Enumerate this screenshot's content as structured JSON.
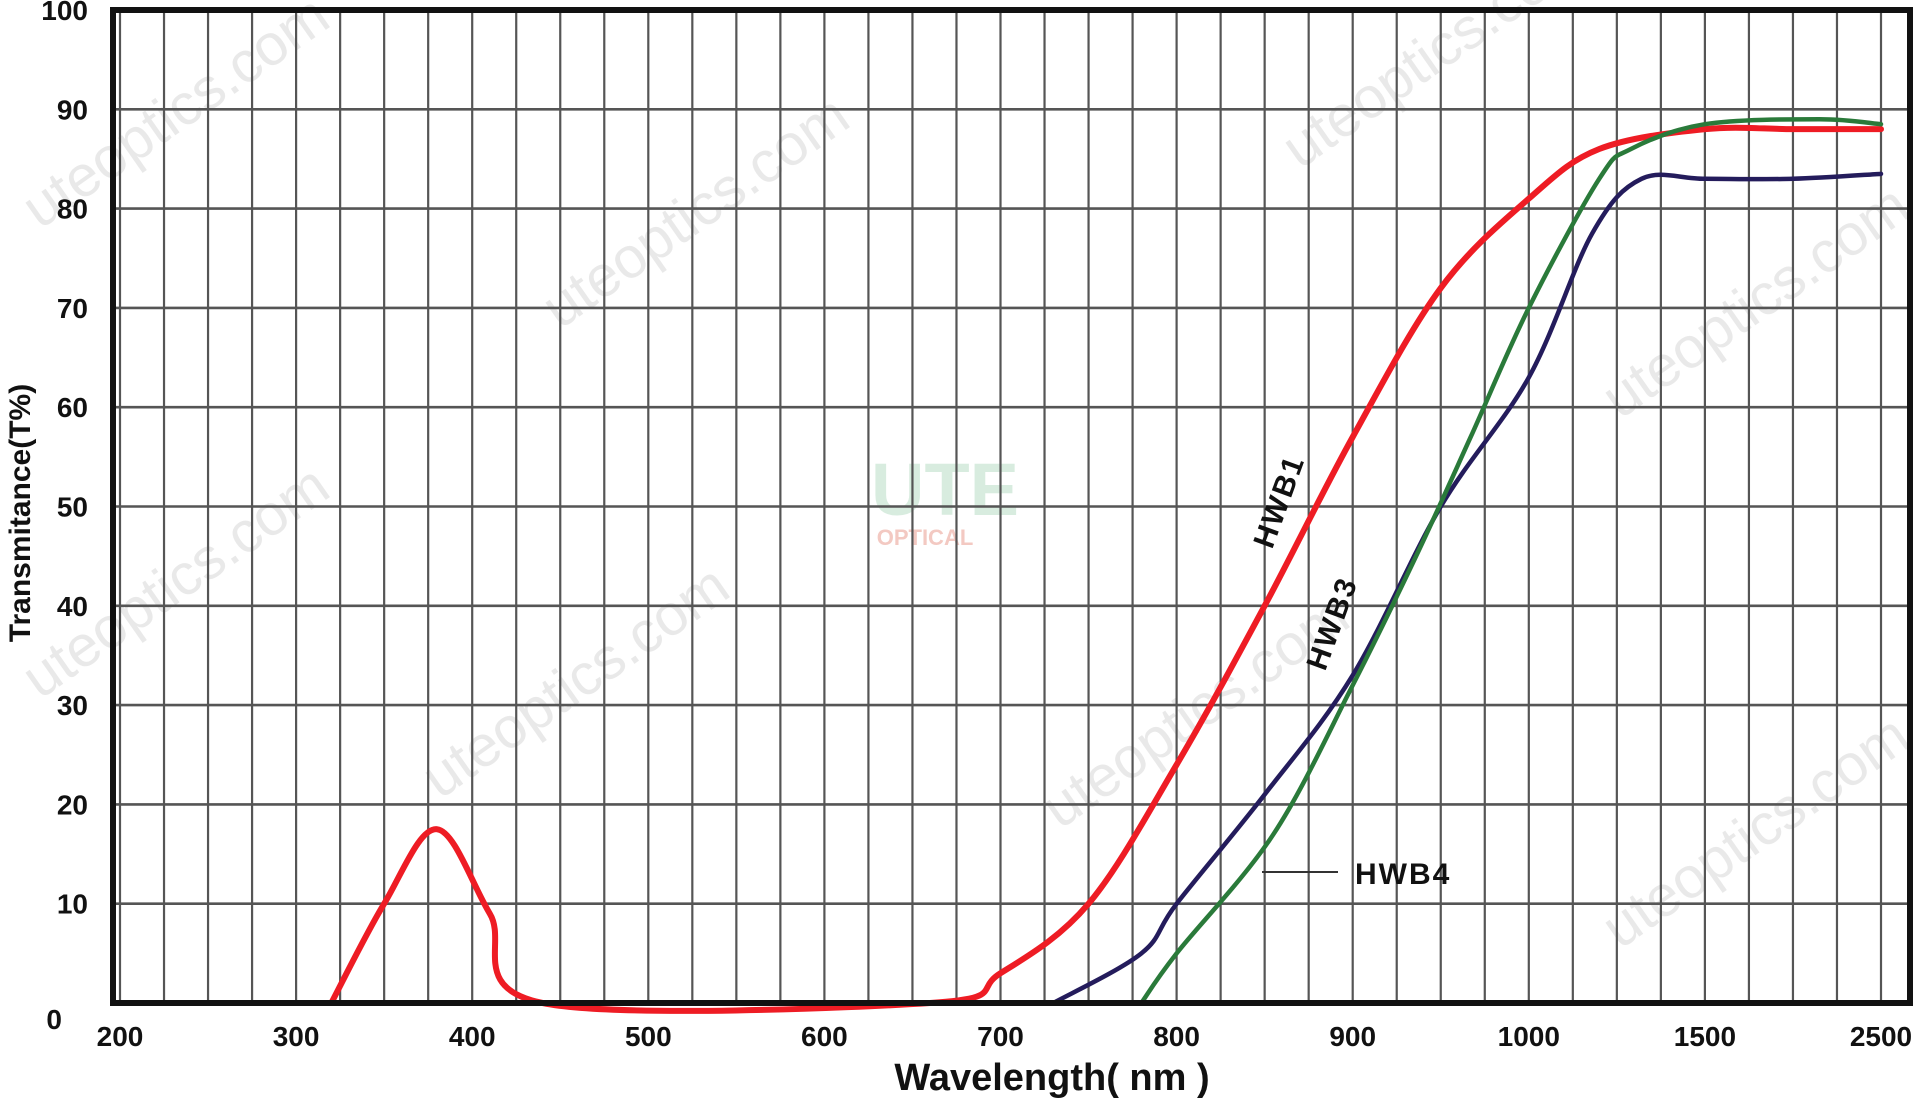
{
  "chart_data": {
    "type": "line",
    "title": "",
    "xlabel": "Wavelength( nm )",
    "ylabel": "Transmitance(T%)",
    "x_ticks": [
      200,
      300,
      400,
      500,
      600,
      700,
      800,
      900,
      1000,
      1500,
      2500
    ],
    "x_scale": "piecewise (uniform tick spacing, non-linear above 1000)",
    "y_ticks": [
      0,
      10,
      20,
      30,
      40,
      50,
      60,
      70,
      80,
      90,
      100
    ],
    "ylim": [
      0,
      100
    ],
    "xlim": [
      200,
      2500
    ],
    "grid": true,
    "series": [
      {
        "name": "HWB1",
        "color": "#ee1c24",
        "x": [
          320,
          350,
          380,
          410,
          440,
          660,
          700,
          750,
          800,
          850,
          900,
          950,
          1000,
          1200,
          1500,
          2000,
          2500
        ],
        "y": [
          0,
          10,
          17.5,
          9,
          0,
          0,
          3,
          10,
          24,
          40,
          57,
          72,
          81,
          86,
          88,
          88,
          88
        ]
      },
      {
        "name": "HWB3",
        "color": "#241c5c",
        "x": [
          730,
          780,
          800,
          850,
          900,
          950,
          1000,
          1180,
          1320,
          1500,
          2000,
          2500
        ],
        "y": [
          0,
          5,
          10,
          21,
          33,
          50,
          63,
          77.5,
          83,
          83,
          83,
          83.5
        ]
      },
      {
        "name": "HWB4",
        "color": "#2a7a3a",
        "x": [
          780,
          800,
          855,
          900,
          936,
          967,
          1000,
          1200,
          1290,
          1500,
          2150,
          2500
        ],
        "y": [
          0,
          5,
          17,
          32,
          45,
          57,
          70,
          83,
          86,
          88.5,
          89,
          88.5
        ]
      }
    ]
  },
  "watermark": {
    "text": "uteoptics.com",
    "logo_text": "UTE",
    "logo_sub": "OPTICAL"
  }
}
